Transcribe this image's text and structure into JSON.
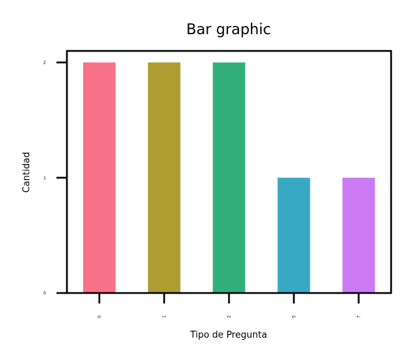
{
  "chart_data": {
    "type": "bar",
    "title": "Bar graphic",
    "xlabel": "Tipo de Pregunta",
    "ylabel": "Cantidad",
    "categories": [
      "0",
      "1",
      "2",
      "5",
      "7"
    ],
    "values": [
      2,
      2,
      2,
      1,
      1
    ],
    "colors": [
      "#f77189",
      "#ae9d31",
      "#33b07a",
      "#38a9c5",
      "#cc7af4"
    ],
    "yticks": [
      0,
      1,
      2
    ],
    "ylim": [
      0,
      2.1
    ],
    "grid": false,
    "legend": "none"
  }
}
